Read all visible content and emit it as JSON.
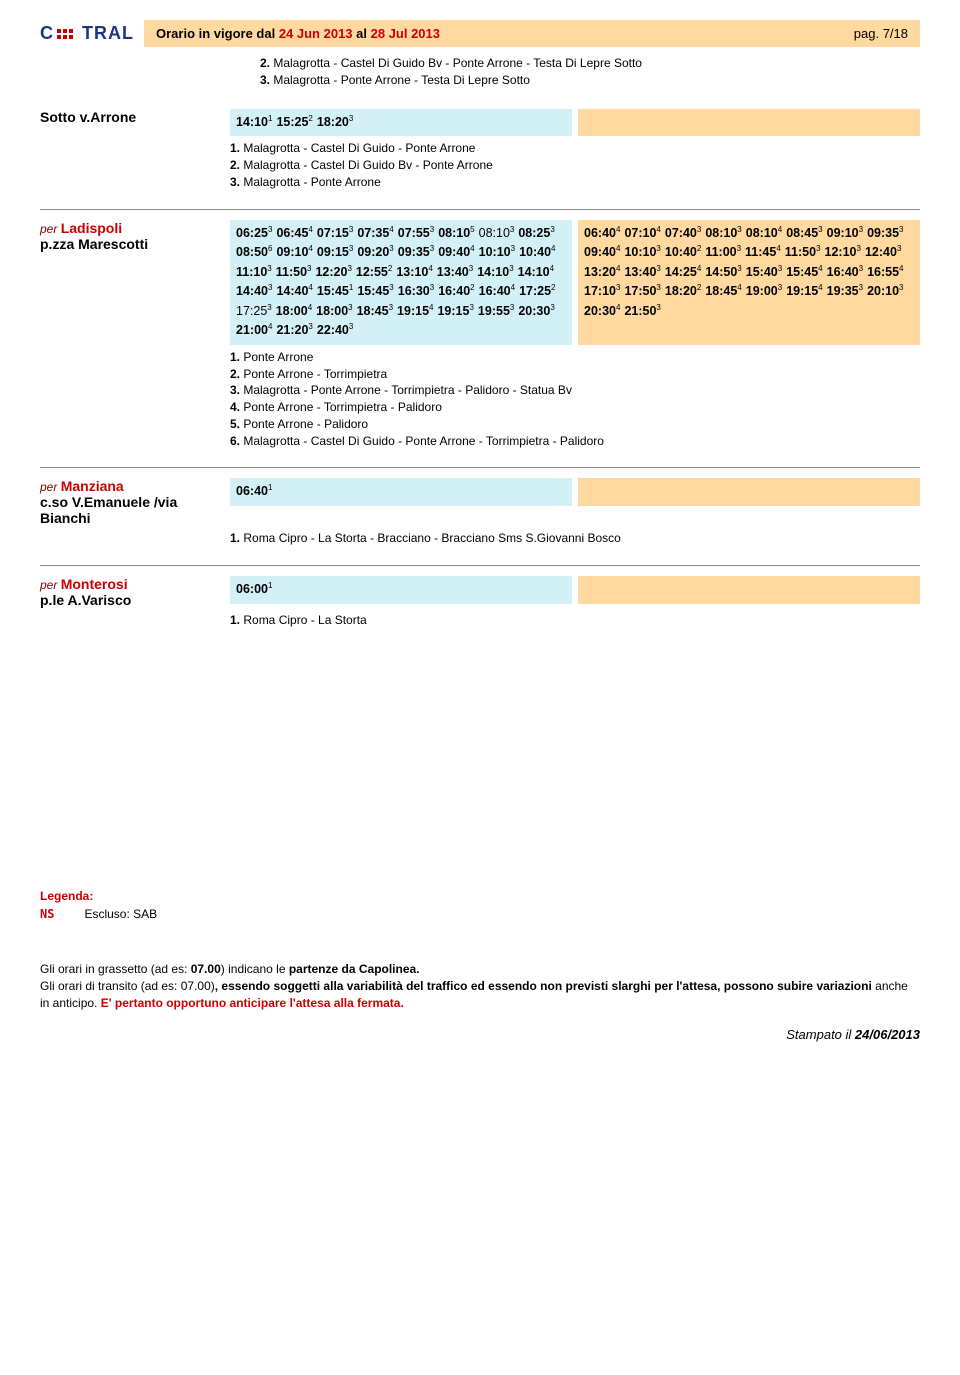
{
  "header": {
    "logo_a": "C",
    "logo_b": "TRAL",
    "title_prefix": "Orario in vigore dal ",
    "date_from": "24 Jun 2013",
    "title_mid": " al ",
    "date_to": "28 Jul 2013",
    "page": "pag. 7/18"
  },
  "top_routes": [
    {
      "n": "2.",
      "t": "Malagrotta - Castel Di Guido Bv - Ponte Arrone - Testa Di Lepre Sotto"
    },
    {
      "n": "3.",
      "t": "Malagrotta - Ponte Arrone - Testa Di Lepre Sotto"
    }
  ],
  "sotto": {
    "label": "Sotto v.Arrone",
    "times": [
      {
        "t": "14:10",
        "s": "1"
      },
      {
        "t": "15:25",
        "s": "2"
      },
      {
        "t": "18:20",
        "s": "3"
      }
    ],
    "notes": [
      {
        "n": "1.",
        "t": "Malagrotta - Castel Di Guido - Ponte Arrone"
      },
      {
        "n": "2.",
        "t": "Malagrotta - Castel Di Guido Bv - Ponte Arrone"
      },
      {
        "n": "3.",
        "t": "Malagrotta - Ponte Arrone"
      }
    ]
  },
  "ladispoli": {
    "per": "per",
    "dest": "Ladispoli",
    "sub": "p.zza Marescotti",
    "blue_times": [
      {
        "t": "06:25",
        "s": "3"
      },
      {
        "t": "06:45",
        "s": "4"
      },
      {
        "t": "07:15",
        "s": "3"
      },
      {
        "t": "07:35",
        "s": "4"
      },
      {
        "t": "07:55",
        "s": "3"
      },
      {
        "t": "08:10",
        "s": "5"
      },
      {
        "t": "08:10",
        "s": "3",
        "nb": true
      },
      {
        "t": "08:25",
        "s": "3"
      },
      {
        "t": "08:50",
        "s": "6"
      },
      {
        "t": "09:10",
        "s": "4"
      },
      {
        "t": "09:15",
        "s": "3"
      },
      {
        "t": "09:20",
        "s": "3"
      },
      {
        "t": "09:35",
        "s": "3"
      },
      {
        "t": "09:40",
        "s": "4"
      },
      {
        "t": "10:10",
        "s": "3"
      },
      {
        "t": "10:40",
        "s": "4"
      },
      {
        "t": "11:10",
        "s": "3"
      },
      {
        "t": "11:50",
        "s": "3"
      },
      {
        "t": "12:20",
        "s": "3"
      },
      {
        "t": "12:55",
        "s": "2"
      },
      {
        "t": "13:10",
        "s": "4"
      },
      {
        "t": "13:40",
        "s": "3"
      },
      {
        "t": "14:10",
        "s": "3"
      },
      {
        "t": "14:10",
        "s": "4"
      },
      {
        "t": "14:40",
        "s": "3"
      },
      {
        "t": "14:40",
        "s": "4"
      },
      {
        "t": "15:45",
        "s": "1"
      },
      {
        "t": "15:45",
        "s": "3"
      },
      {
        "t": "16:30",
        "s": "3"
      },
      {
        "t": "16:40",
        "s": "2"
      },
      {
        "t": "16:40",
        "s": "4"
      },
      {
        "t": "17:25",
        "s": "2"
      },
      {
        "t": "17:25",
        "s": "3",
        "nb": true
      },
      {
        "t": "18:00",
        "s": "4"
      },
      {
        "t": "18:00",
        "s": "3"
      },
      {
        "t": "18:45",
        "s": "3"
      },
      {
        "t": "19:15",
        "s": "4"
      },
      {
        "t": "19:15",
        "s": "3"
      },
      {
        "t": "19:55",
        "s": "3"
      },
      {
        "t": "20:30",
        "s": "3"
      },
      {
        "t": "21:00",
        "s": "4"
      },
      {
        "t": "21:20",
        "s": "3"
      },
      {
        "t": "22:40",
        "s": "3"
      }
    ],
    "orange_times": [
      {
        "t": "06:40",
        "s": "4"
      },
      {
        "t": "07:10",
        "s": "4"
      },
      {
        "t": "07:40",
        "s": "3"
      },
      {
        "t": "08:10",
        "s": "3"
      },
      {
        "t": "08:10",
        "s": "4"
      },
      {
        "t": "08:45",
        "s": "3"
      },
      {
        "t": "09:10",
        "s": "3"
      },
      {
        "t": "09:35",
        "s": "3"
      },
      {
        "t": "09:40",
        "s": "4"
      },
      {
        "t": "10:10",
        "s": "3"
      },
      {
        "t": "10:40",
        "s": "2"
      },
      {
        "t": "11:00",
        "s": "3"
      },
      {
        "t": "11:45",
        "s": "4"
      },
      {
        "t": "11:50",
        "s": "3"
      },
      {
        "t": "12:10",
        "s": "3"
      },
      {
        "t": "12:40",
        "s": "3"
      },
      {
        "t": "13:20",
        "s": "4"
      },
      {
        "t": "13:40",
        "s": "3"
      },
      {
        "t": "14:25",
        "s": "4"
      },
      {
        "t": "14:50",
        "s": "3"
      },
      {
        "t": "15:40",
        "s": "3"
      },
      {
        "t": "15:45",
        "s": "4"
      },
      {
        "t": "16:40",
        "s": "3"
      },
      {
        "t": "16:55",
        "s": "4"
      },
      {
        "t": "17:10",
        "s": "3"
      },
      {
        "t": "17:50",
        "s": "3"
      },
      {
        "t": "18:20",
        "s": "2"
      },
      {
        "t": "18:45",
        "s": "4"
      },
      {
        "t": "19:00",
        "s": "3"
      },
      {
        "t": "19:15",
        "s": "4"
      },
      {
        "t": "19:35",
        "s": "3"
      },
      {
        "t": "20:10",
        "s": "3"
      },
      {
        "t": "20:30",
        "s": "4"
      },
      {
        "t": "21:50",
        "s": "3"
      }
    ],
    "notes": [
      {
        "n": "1.",
        "t": "Ponte Arrone"
      },
      {
        "n": "2.",
        "t": "Ponte Arrone - Torrimpietra"
      },
      {
        "n": "3.",
        "t": "Malagrotta - Ponte Arrone - Torrimpietra - Palidoro - Statua Bv"
      },
      {
        "n": "4.",
        "t": "Ponte Arrone - Torrimpietra - Palidoro"
      },
      {
        "n": "5.",
        "t": "Ponte Arrone - Palidoro"
      },
      {
        "n": "6.",
        "t": "Malagrotta - Castel Di Guido - Ponte Arrone - Torrimpietra - Palidoro"
      }
    ]
  },
  "manziana": {
    "per": "per",
    "dest": "Manziana",
    "sub1": "c.so V.Emanuele /via",
    "sub2": "Bianchi",
    "times": [
      {
        "t": "06:40",
        "s": "1"
      }
    ],
    "notes": [
      {
        "n": "1.",
        "t": "Roma Cipro - La Storta - Bracciano - Bracciano Sms S.Giovanni Bosco"
      }
    ]
  },
  "monterosi": {
    "per": "per",
    "dest": "Monterosi",
    "sub": "p.le A.Varisco",
    "times": [
      {
        "t": "06:00",
        "s": "1"
      }
    ],
    "notes": [
      {
        "n": "1.",
        "t": "Roma Cipro - La Storta"
      }
    ]
  },
  "legend": {
    "title": "Legenda:",
    "code": "NS",
    "desc": "Escluso: SAB"
  },
  "footer": {
    "l1a": "Gli orari in grassetto ",
    "l1b": "(ad es: ",
    "l1c": "07.00",
    "l1d": ") indicano le ",
    "l1e": "partenze da Capolinea.",
    "l2a": "Gli ",
    "l2b": "orari di transito ",
    "l2c": "(ad es: 07.00)",
    "l2d": ", essendo soggetti alla variabilità del traffico ed essendo non previsti slarghi per l'attesa, ",
    "l2e": "possono subire variazioni ",
    "l2f": "anche in anticipo. ",
    "l2g": "E' pertanto opportuno anticipare l'attesa alla fermata.",
    "printed_a": "Stampato il ",
    "printed_b": "24/06/2013"
  },
  "colors": {
    "blue_bg": "#d4f0f7",
    "orange_bg": "#ffd9a0",
    "red": "#c00",
    "logo_blue": "#1a3680"
  }
}
